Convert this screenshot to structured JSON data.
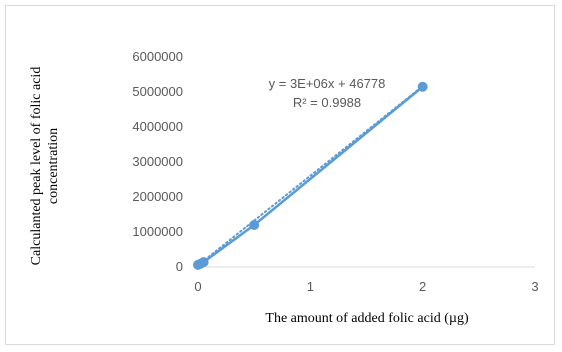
{
  "chart_data": {
    "type": "scatter",
    "xlabel": "The amount of added folic acid (µg)",
    "ylabel_line1": "Calculanted peak level of folic acid",
    "ylabel_line2": "concentration",
    "xlim": [
      0,
      3
    ],
    "ylim": [
      0,
      6000000
    ],
    "x_ticks": [
      "0",
      "1",
      "2",
      "3"
    ],
    "y_ticks": [
      "0",
      "1000000",
      "2000000",
      "3000000",
      "4000000",
      "5000000",
      "6000000"
    ],
    "grid": false,
    "legend": "none",
    "series": [
      {
        "x": [
          0,
          0.02,
          0.05,
          0.5,
          2
        ],
        "y": [
          60000,
          90000,
          140000,
          1200000,
          5150000
        ],
        "line_color": "#5b9bd5",
        "marker": "circle"
      }
    ],
    "trendline": {
      "type": "linear",
      "style": "dotted",
      "slope": 2560000,
      "intercept": 46778,
      "equation": "y = 3E+06x + 46778",
      "r_squared": "R² = 0.9988"
    }
  }
}
